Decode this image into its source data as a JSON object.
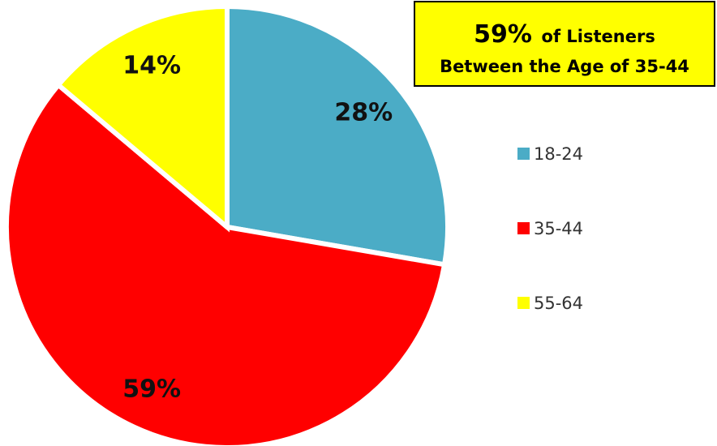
{
  "chart_data": {
    "type": "pie",
    "categories": [
      "18-24",
      "35-44",
      "55-64"
    ],
    "values": [
      28,
      59,
      14
    ],
    "value_labels": [
      "28%",
      "59%",
      "14%"
    ],
    "colors": [
      "#4bacc6",
      "#ff0000",
      "#ffff00"
    ],
    "legend": "right",
    "annotation": {
      "highlight": "59%",
      "line1": "of Listeners",
      "line2": "Between the Age of 35-44"
    }
  }
}
